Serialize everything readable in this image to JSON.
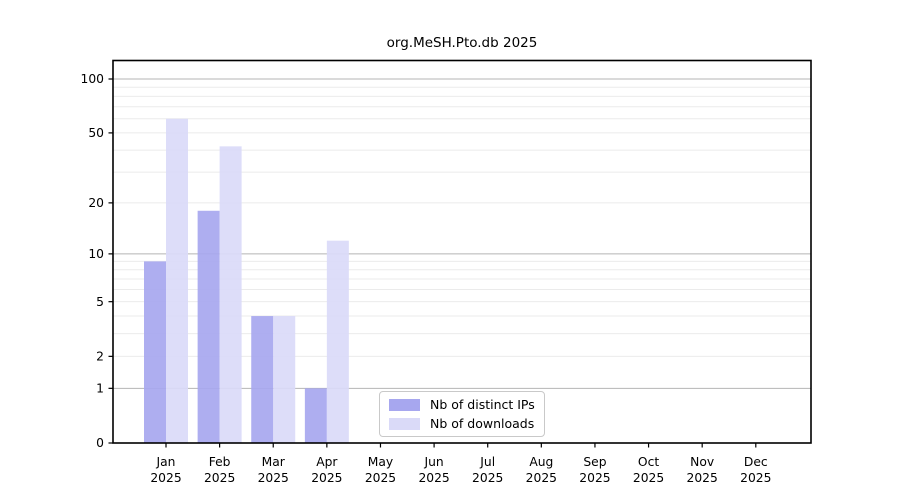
{
  "chart_data": {
    "type": "bar",
    "title": "org.MeSH.Pto.db 2025",
    "categories": [
      {
        "month": "Jan",
        "year": "2025"
      },
      {
        "month": "Feb",
        "year": "2025"
      },
      {
        "month": "Mar",
        "year": "2025"
      },
      {
        "month": "Apr",
        "year": "2025"
      },
      {
        "month": "May",
        "year": "2025"
      },
      {
        "month": "Jun",
        "year": "2025"
      },
      {
        "month": "Jul",
        "year": "2025"
      },
      {
        "month": "Aug",
        "year": "2025"
      },
      {
        "month": "Sep",
        "year": "2025"
      },
      {
        "month": "Oct",
        "year": "2025"
      },
      {
        "month": "Nov",
        "year": "2025"
      },
      {
        "month": "Dec",
        "year": "2025"
      }
    ],
    "series": [
      {
        "name": "Nb of distinct IPs",
        "color": "#a7a7ef",
        "values": [
          9,
          18,
          4,
          1,
          0,
          0,
          0,
          0,
          0,
          0,
          0,
          0
        ]
      },
      {
        "name": "Nb of downloads",
        "color": "#dadaf8",
        "values": [
          60,
          42,
          4,
          12,
          0,
          0,
          0,
          0,
          0,
          0,
          0,
          0
        ]
      }
    ],
    "y_axis": {
      "scale": "log10(value+1)",
      "tick_values": [
        0,
        1,
        2,
        5,
        10,
        20,
        50,
        100
      ],
      "major_gridlines": [
        1,
        10,
        100
      ],
      "minor_gridlines": [
        2,
        3,
        4,
        5,
        6,
        7,
        8,
        9,
        20,
        30,
        40,
        50,
        60,
        70,
        80,
        90
      ],
      "ylim": [
        0,
        127
      ]
    },
    "colors": {
      "grid_major": "#b4b4b4",
      "grid_minor": "#ebebeb",
      "axis": "#000000",
      "background": "#ffffff"
    },
    "legend_position": "bottom-center-inside",
    "grid": "on"
  }
}
